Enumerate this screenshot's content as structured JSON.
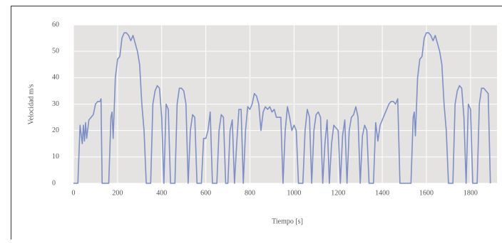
{
  "chart_data": {
    "type": "line",
    "x_label": "Tiempo [s]",
    "y_label": "Velocidad  m/s",
    "xlim": [
      0,
      1920
    ],
    "ylim": [
      0,
      60
    ],
    "xticks": [
      0,
      200,
      400,
      600,
      800,
      1000,
      1200,
      1400,
      1600,
      1800
    ],
    "yticks": [
      0,
      10,
      20,
      30,
      40,
      50,
      60
    ],
    "grid": true,
    "x": [
      0,
      20,
      30,
      40,
      45,
      50,
      55,
      60,
      70,
      80,
      90,
      100,
      110,
      120,
      125,
      130,
      160,
      170,
      175,
      180,
      190,
      200,
      210,
      220,
      230,
      240,
      250,
      260,
      270,
      280,
      290,
      300,
      310,
      320,
      330,
      350,
      360,
      370,
      380,
      390,
      400,
      410,
      420,
      430,
      440,
      460,
      470,
      480,
      490,
      500,
      510,
      520,
      530,
      540,
      550,
      560,
      580,
      590,
      600,
      610,
      620,
      630,
      650,
      660,
      670,
      680,
      690,
      700,
      710,
      720,
      730,
      740,
      750,
      760,
      770,
      780,
      790,
      800,
      810,
      820,
      830,
      840,
      850,
      860,
      870,
      880,
      890,
      900,
      910,
      920,
      930,
      940,
      950,
      960,
      970,
      980,
      990,
      1000,
      1010,
      1020,
      1040,
      1050,
      1060,
      1070,
      1080,
      1090,
      1100,
      1110,
      1120,
      1130,
      1140,
      1150,
      1160,
      1170,
      1180,
      1190,
      1200,
      1210,
      1220,
      1230,
      1240,
      1250,
      1260,
      1270,
      1280,
      1290,
      1300,
      1310,
      1320,
      1330,
      1340,
      1360,
      1370,
      1380,
      1390,
      1400,
      1410,
      1420,
      1430,
      1440,
      1450,
      1460,
      1470,
      1480,
      1530,
      1540,
      1545,
      1550,
      1560,
      1570,
      1580,
      1590,
      1600,
      1610,
      1620,
      1630,
      1640,
      1650,
      1660,
      1670,
      1680,
      1690,
      1700,
      1720,
      1730,
      1740,
      1750,
      1760,
      1770,
      1780,
      1790,
      1800,
      1810,
      1830,
      1840,
      1850,
      1860,
      1870,
      1880,
      1890
    ],
    "series": [
      {
        "name": "Velocidad",
        "color": "#7d8fc6",
        "values": [
          0,
          0,
          22,
          15,
          22,
          16,
          23,
          17,
          24,
          25,
          26,
          30,
          31,
          31,
          32,
          0,
          0,
          25,
          27,
          17,
          40,
          47,
          48,
          55,
          57,
          57,
          56,
          54,
          56,
          53,
          50,
          45,
          30,
          20,
          0,
          0,
          30,
          35,
          37,
          36,
          25,
          0,
          30,
          28,
          0,
          0,
          30,
          36,
          36,
          35,
          30,
          0,
          20,
          26,
          25,
          0,
          0,
          17,
          17,
          20,
          27,
          0,
          0,
          20,
          26,
          25,
          0,
          0,
          20,
          24,
          0,
          15,
          28,
          28,
          0,
          20,
          29,
          28,
          30,
          34,
          33,
          30,
          20,
          27,
          29,
          28,
          29,
          27,
          28,
          25,
          25,
          25,
          0,
          20,
          29,
          25,
          20,
          22,
          20,
          0,
          0,
          20,
          28,
          25,
          0,
          20,
          26,
          27,
          25,
          0,
          15,
          24,
          0,
          15,
          22,
          21,
          20,
          0,
          18,
          24,
          0,
          20,
          25,
          26,
          29,
          25,
          0,
          18,
          22,
          20,
          0,
          0,
          23,
          16,
          22,
          24,
          26,
          28,
          30,
          31,
          31,
          30,
          32,
          0,
          0,
          25,
          27,
          18,
          40,
          47,
          48,
          55,
          57,
          57,
          56,
          54,
          56,
          53,
          50,
          45,
          30,
          20,
          0,
          0,
          30,
          35,
          37,
          36,
          25,
          0,
          30,
          28,
          0,
          0,
          30,
          36,
          36,
          35,
          34,
          0
        ]
      }
    ]
  }
}
